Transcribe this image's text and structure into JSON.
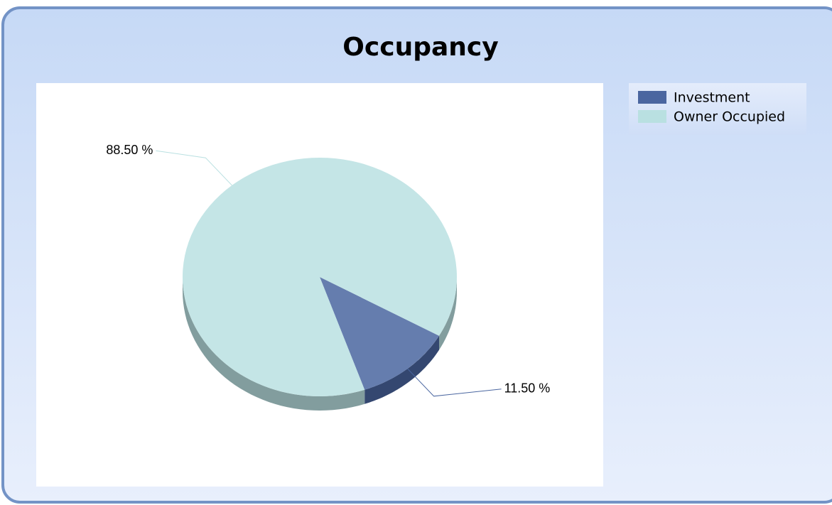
{
  "chart_data": {
    "type": "pie",
    "title": "Occupancy",
    "categories": [
      "Investment",
      "Owner Occupied"
    ],
    "values": [
      11.5,
      88.5
    ],
    "value_labels": [
      "11.50 %",
      "88.50 %"
    ],
    "colors": [
      "#4a66a0",
      "#b9e0e1"
    ],
    "legend": "top-right"
  }
}
